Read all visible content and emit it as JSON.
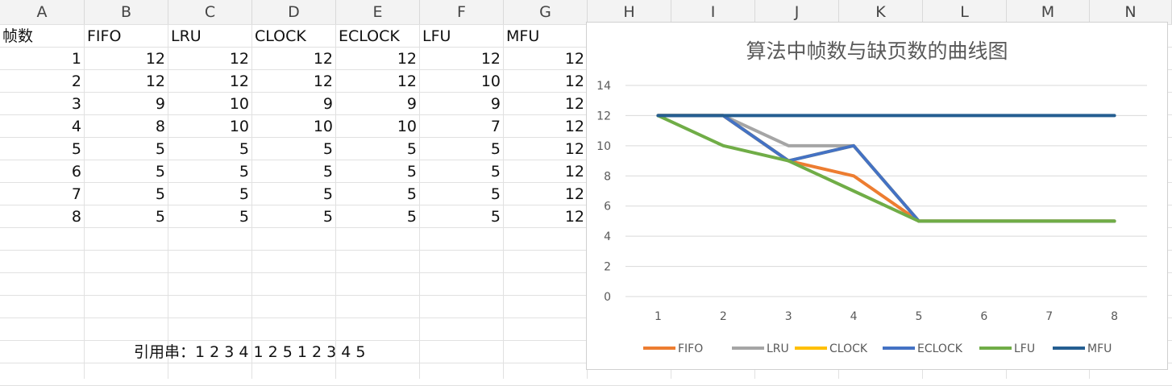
{
  "columns": [
    "A",
    "B",
    "C",
    "D",
    "E",
    "F",
    "G",
    "H",
    "I",
    "J",
    "K",
    "L",
    "M",
    "N"
  ],
  "sheet": {
    "header_row": [
      "帧数",
      "FIFO",
      "LRU",
      "CLOCK",
      "ECLOCK",
      "LFU",
      "MFU"
    ],
    "rows": [
      [
        1,
        12,
        12,
        12,
        12,
        12,
        12
      ],
      [
        2,
        12,
        12,
        12,
        12,
        10,
        12
      ],
      [
        3,
        9,
        10,
        9,
        9,
        9,
        12
      ],
      [
        4,
        8,
        10,
        10,
        10,
        7,
        12
      ],
      [
        5,
        5,
        5,
        5,
        5,
        5,
        12
      ],
      [
        6,
        5,
        5,
        5,
        5,
        5,
        12
      ],
      [
        7,
        5,
        5,
        5,
        5,
        5,
        12
      ],
      [
        8,
        5,
        5,
        5,
        5,
        5,
        12
      ]
    ],
    "reference_string": "引用串：1 2 3 4 1 2 5 1 2 3 4 5"
  },
  "chart_data": {
    "type": "line",
    "title": "算法中帧数与缺页数的曲线图",
    "categories": [
      "1",
      "2",
      "3",
      "4",
      "5",
      "6",
      "7",
      "8"
    ],
    "ylim": [
      0,
      14
    ],
    "yticks": [
      0,
      2,
      4,
      6,
      8,
      10,
      12,
      14
    ],
    "grid": true,
    "legend_position": "bottom",
    "series": [
      {
        "name": "FIFO",
        "color": "#ED7D31",
        "values": [
          12,
          12,
          9,
          8,
          5,
          5,
          5,
          5
        ]
      },
      {
        "name": "LRU",
        "color": "#A5A5A5",
        "values": [
          12,
          12,
          10,
          10,
          5,
          5,
          5,
          5
        ]
      },
      {
        "name": "CLOCK",
        "color": "#FFC000",
        "values": [
          12,
          12,
          9,
          10,
          5,
          5,
          5,
          5
        ]
      },
      {
        "name": "ECLOCK",
        "color": "#4472C4",
        "values": [
          12,
          12,
          9,
          10,
          5,
          5,
          5,
          5
        ]
      },
      {
        "name": "LFU",
        "color": "#70AD47",
        "values": [
          12,
          10,
          9,
          7,
          5,
          5,
          5,
          5
        ]
      },
      {
        "name": "MFU",
        "color": "#255E91",
        "values": [
          12,
          12,
          12,
          12,
          12,
          12,
          12,
          12
        ]
      }
    ]
  }
}
